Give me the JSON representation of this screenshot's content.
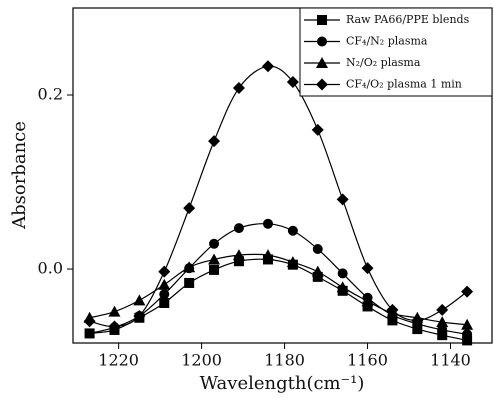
{
  "chart_data": {
    "type": "line",
    "x_label": "Wavelength(cm⁻¹)",
    "y_label": "Absorbance",
    "x": [
      1227,
      1221,
      1215,
      1209,
      1203,
      1197,
      1191,
      1184,
      1178,
      1172,
      1166,
      1160,
      1154,
      1148,
      1142,
      1136
    ],
    "series": [
      {
        "name": "Raw PA66/PPE blends",
        "color": "#000000",
        "marker": "square",
        "values": [
          -0.074,
          -0.07,
          -0.056,
          -0.039,
          -0.016,
          -0.001,
          0.009,
          0.011,
          0.005,
          -0.009,
          -0.025,
          -0.043,
          -0.059,
          -0.069,
          -0.076,
          -0.082
        ]
      },
      {
        "name": "CF₄/N₂ plasma",
        "color": "#000000",
        "marker": "circle",
        "values": [
          -0.074,
          -0.067,
          -0.054,
          -0.029,
          0.001,
          0.029,
          0.047,
          0.052,
          0.044,
          0.023,
          -0.005,
          -0.033,
          -0.053,
          -0.063,
          -0.07,
          -0.075
        ]
      },
      {
        "name": "N₂/O₂ plasma",
        "color": "#000000",
        "marker": "triangle",
        "values": [
          -0.056,
          -0.049,
          -0.036,
          -0.018,
          0.002,
          0.011,
          0.016,
          0.016,
          0.008,
          -0.003,
          -0.021,
          -0.037,
          -0.051,
          -0.056,
          -0.061,
          -0.064
        ]
      },
      {
        "name": "CF₄/O₂ plasma 1 min",
        "color": "#000000",
        "marker": "diamond",
        "values": [
          -0.06,
          -0.066,
          -0.054,
          -0.003,
          0.07,
          0.147,
          0.208,
          0.233,
          0.215,
          0.16,
          0.08,
          0.001,
          -0.047,
          -0.059,
          -0.047,
          -0.026
        ]
      }
    ],
    "xlim": [
      1231,
      1130
    ],
    "xticks": [
      1220,
      1200,
      1180,
      1160,
      1140
    ],
    "ylim": [
      -0.085,
      0.3
    ],
    "yticks": [
      {
        "value": 0,
        "label": "0.0"
      },
      0.2
    ],
    "legend": "top-right"
  }
}
